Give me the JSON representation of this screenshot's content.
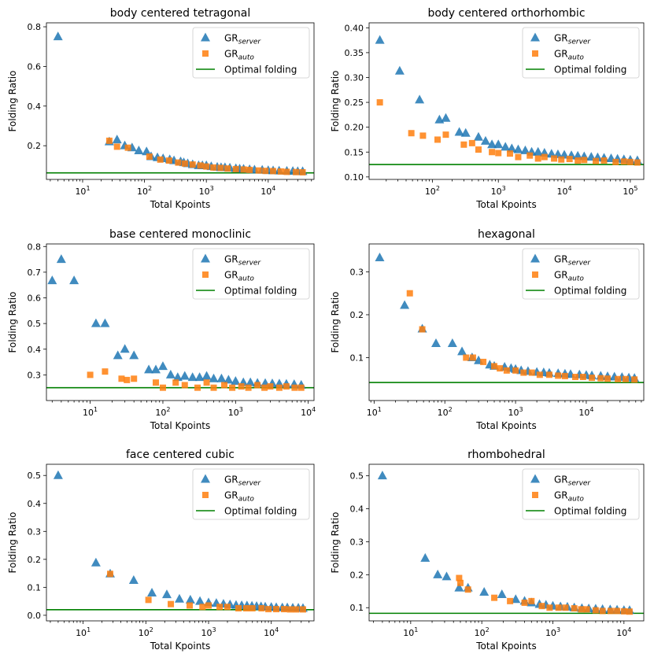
{
  "chart_data": [
    {
      "type": "scatter",
      "title": "body centered tetragonal",
      "xlabel": "Total Kpoints",
      "ylabel": "Folding Ratio",
      "xscale": "log",
      "xlim": [
        2.6,
        55000
      ],
      "ylim": [
        0.03,
        0.82
      ],
      "yticks": [
        0.2,
        0.4,
        0.6,
        0.8
      ],
      "ytick_labels": [
        "0.2",
        "0.4",
        "0.6",
        "0.8"
      ],
      "xticks": [
        10,
        100,
        1000,
        10000
      ],
      "xtick_labels": [
        "10^1",
        "10^2",
        "10^3",
        "10^4"
      ],
      "optimal": 0.063,
      "legend": {
        "position": "top-right",
        "items": [
          {
            "base": "GR",
            "sub": "server"
          },
          {
            "base": "GR",
            "sub": "auto"
          },
          {
            "label": "Optimal folding"
          }
        ]
      },
      "series": [
        {
          "name": "GR_server",
          "marker": "triangle",
          "color": "#1f77b4",
          "x": [
            4,
            27,
            36,
            48,
            63,
            81,
            108,
            128,
            162,
            200,
            256,
            300,
            384,
            432,
            500,
            600,
            750,
            864,
            1000,
            1200,
            1500,
            1728,
            2000,
            2400,
            3000,
            3456,
            4000,
            5000,
            6000,
            8000,
            10000,
            12000,
            15000,
            20000,
            25000,
            30000,
            36000
          ],
          "y": [
            0.75,
            0.22,
            0.23,
            0.2,
            0.19,
            0.175,
            0.17,
            0.145,
            0.14,
            0.135,
            0.13,
            0.125,
            0.12,
            0.115,
            0.11,
            0.105,
            0.1,
            0.1,
            0.1,
            0.095,
            0.092,
            0.09,
            0.09,
            0.088,
            0.085,
            0.083,
            0.082,
            0.08,
            0.078,
            0.077,
            0.075,
            0.074,
            0.073,
            0.072,
            0.071,
            0.07,
            0.07
          ]
        },
        {
          "name": "GR_auto",
          "marker": "square",
          "color": "#ff7f0e",
          "x": [
            27,
            36,
            54,
            120,
            180,
            250,
            350,
            450,
            600,
            800,
            1000,
            1300,
            1700,
            2200,
            3000,
            4000,
            5000,
            7000,
            9000,
            12000,
            16000,
            20000,
            28000,
            36000
          ],
          "y": [
            0.225,
            0.195,
            0.19,
            0.145,
            0.13,
            0.125,
            0.115,
            0.11,
            0.105,
            0.1,
            0.095,
            0.09,
            0.088,
            0.085,
            0.082,
            0.08,
            0.078,
            0.075,
            0.073,
            0.072,
            0.07,
            0.068,
            0.067,
            0.066
          ]
        }
      ]
    },
    {
      "type": "scatter",
      "title": "body centered orthorhombic",
      "xlabel": "Total Kpoints",
      "ylabel": "Folding Ratio",
      "xscale": "log",
      "xlim": [
        11,
        160000
      ],
      "ylim": [
        0.095,
        0.41
      ],
      "yticks": [
        0.1,
        0.15,
        0.2,
        0.25,
        0.3,
        0.35,
        0.4
      ],
      "ytick_labels": [
        "0.10",
        "0.15",
        "0.20",
        "0.25",
        "0.30",
        "0.35",
        "0.40"
      ],
      "xticks": [
        100,
        1000,
        10000,
        100000
      ],
      "xtick_labels": [
        "10^2",
        "10^3",
        "10^4",
        "10^5"
      ],
      "optimal": 0.125,
      "legend": {
        "position": "top-right",
        "items": [
          {
            "base": "GR",
            "sub": "server"
          },
          {
            "base": "GR",
            "sub": "auto"
          },
          {
            "label": "Optimal folding"
          }
        ]
      },
      "series": [
        {
          "name": "GR_server",
          "marker": "triangle",
          "color": "#1f77b4",
          "x": [
            16,
            32,
            64,
            128,
            160,
            256,
            320,
            500,
            640,
            800,
            1000,
            1280,
            1600,
            2000,
            2560,
            3200,
            4000,
            5000,
            6400,
            8000,
            10000,
            12800,
            16000,
            20000,
            25600,
            32000,
            40000,
            51200,
            64000,
            80000,
            100000,
            128000
          ],
          "y": [
            0.375,
            0.313,
            0.255,
            0.215,
            0.218,
            0.19,
            0.188,
            0.18,
            0.172,
            0.165,
            0.165,
            0.16,
            0.157,
            0.155,
            0.153,
            0.15,
            0.15,
            0.148,
            0.146,
            0.145,
            0.144,
            0.143,
            0.142,
            0.141,
            0.14,
            0.139,
            0.138,
            0.137,
            0.136,
            0.135,
            0.134,
            0.133
          ]
        },
        {
          "name": "GR_auto",
          "marker": "square",
          "color": "#ff7f0e",
          "x": [
            16,
            48,
            72,
            120,
            160,
            300,
            400,
            500,
            800,
            1000,
            1500,
            2000,
            3000,
            4000,
            5000,
            7000,
            9000,
            12000,
            16000,
            20000,
            30000,
            40000,
            60000,
            80000,
            100000,
            128000
          ],
          "y": [
            0.25,
            0.188,
            0.183,
            0.175,
            0.185,
            0.165,
            0.168,
            0.155,
            0.15,
            0.148,
            0.147,
            0.14,
            0.143,
            0.137,
            0.14,
            0.137,
            0.135,
            0.136,
            0.133,
            0.134,
            0.132,
            0.133,
            0.13,
            0.131,
            0.13,
            0.129
          ]
        }
      ]
    },
    {
      "type": "scatter",
      "title": "base centered monoclinic",
      "xlabel": "Total Kpoints",
      "ylabel": "Folding Ratio",
      "xscale": "log",
      "xlim": [
        2.5,
        12000
      ],
      "ylim": [
        0.2,
        0.81
      ],
      "yticks": [
        0.3,
        0.4,
        0.5,
        0.6,
        0.7,
        0.8
      ],
      "ytick_labels": [
        "0.3",
        "0.4",
        "0.5",
        "0.6",
        "0.7",
        "0.8"
      ],
      "xticks": [
        10,
        100,
        1000,
        10000
      ],
      "xtick_labels": [
        "10^1",
        "10^2",
        "10^3",
        "10^4"
      ],
      "optimal": 0.25,
      "legend": {
        "position": "top-right",
        "items": [
          {
            "base": "GR",
            "sub": "server"
          },
          {
            "base": "GR",
            "sub": "auto"
          },
          {
            "label": "Optimal folding"
          }
        ]
      },
      "series": [
        {
          "name": "GR_server",
          "marker": "triangle",
          "color": "#1f77b4",
          "x": [
            3,
            4,
            6,
            12,
            16,
            24,
            30,
            40,
            64,
            80,
            100,
            128,
            160,
            200,
            256,
            320,
            400,
            500,
            640,
            800,
            1000,
            1280,
            1600,
            2000,
            2560,
            3200,
            4000,
            5000,
            6400,
            8000
          ],
          "y": [
            0.667,
            0.75,
            0.667,
            0.5,
            0.5,
            0.375,
            0.4,
            0.375,
            0.32,
            0.32,
            0.333,
            0.3,
            0.29,
            0.295,
            0.29,
            0.29,
            0.295,
            0.285,
            0.285,
            0.28,
            0.275,
            0.27,
            0.27,
            0.268,
            0.267,
            0.266,
            0.265,
            0.264,
            0.263,
            0.26
          ]
        },
        {
          "name": "GR_auto",
          "marker": "square",
          "color": "#ff7f0e",
          "x": [
            10,
            16,
            27,
            32,
            40,
            80,
            100,
            150,
            200,
            300,
            400,
            500,
            700,
            900,
            1200,
            1500,
            2000,
            2500,
            3000,
            4000,
            5000,
            6500,
            8000
          ],
          "y": [
            0.3,
            0.313,
            0.285,
            0.28,
            0.285,
            0.27,
            0.25,
            0.27,
            0.26,
            0.25,
            0.27,
            0.25,
            0.26,
            0.25,
            0.255,
            0.25,
            0.26,
            0.25,
            0.255,
            0.25,
            0.255,
            0.25,
            0.25
          ]
        }
      ]
    },
    {
      "type": "scatter",
      "title": "hexagonal",
      "xlabel": "Total Kpoints",
      "ylabel": "Folding Ratio",
      "xscale": "log",
      "xlim": [
        8.5,
        65000
      ],
      "ylim": [
        0.0,
        0.365
      ],
      "yticks": [
        0.1,
        0.2,
        0.3
      ],
      "ytick_labels": [
        "0.1",
        "0.2",
        "0.3"
      ],
      "xticks": [
        10,
        100,
        1000,
        10000
      ],
      "xtick_labels": [
        "10^1",
        "10^2",
        "10^3",
        "10^4"
      ],
      "optimal": 0.042,
      "legend": {
        "position": "top-right",
        "items": [
          {
            "base": "GR",
            "sub": "server"
          },
          {
            "base": "GR",
            "sub": "auto"
          },
          {
            "label": "Optimal folding"
          }
        ]
      },
      "series": [
        {
          "name": "GR_server",
          "marker": "triangle",
          "color": "#1f77b4",
          "x": [
            12,
            27,
            48,
            75,
            128,
            175,
            243,
            300,
            432,
            500,
            700,
            864,
            1000,
            1200,
            1500,
            2000,
            2500,
            3000,
            4000,
            5000,
            6000,
            8000,
            10000,
            12000,
            16000,
            20000,
            25000,
            32000,
            40000,
            48000
          ],
          "y": [
            0.333,
            0.222,
            0.167,
            0.133,
            0.133,
            0.114,
            0.1,
            0.093,
            0.083,
            0.08,
            0.078,
            0.075,
            0.073,
            0.07,
            0.068,
            0.066,
            0.065,
            0.064,
            0.063,
            0.062,
            0.061,
            0.06,
            0.059,
            0.058,
            0.057,
            0.056,
            0.055,
            0.054,
            0.053,
            0.052
          ]
        },
        {
          "name": "GR_auto",
          "marker": "square",
          "color": "#ff7f0e",
          "x": [
            32,
            48,
            200,
            250,
            350,
            500,
            600,
            750,
            1000,
            1300,
            1700,
            2200,
            3000,
            4000,
            5000,
            7000,
            9000,
            12000,
            16000,
            20000,
            28000,
            36000,
            48000
          ],
          "y": [
            0.25,
            0.166,
            0.1,
            0.1,
            0.09,
            0.08,
            0.075,
            0.07,
            0.07,
            0.065,
            0.065,
            0.06,
            0.06,
            0.058,
            0.057,
            0.055,
            0.055,
            0.053,
            0.052,
            0.051,
            0.05,
            0.05,
            0.049
          ]
        }
      ]
    },
    {
      "type": "scatter",
      "title": "face centered cubic",
      "xlabel": "Total Kpoints",
      "ylabel": "Folding Ratio",
      "xscale": "log",
      "xlim": [
        2.6,
        48000
      ],
      "ylim": [
        -0.02,
        0.54
      ],
      "yticks": [
        0.0,
        0.1,
        0.2,
        0.3,
        0.4,
        0.5
      ],
      "ytick_labels": [
        "0.0",
        "0.1",
        "0.2",
        "0.3",
        "0.4",
        "0.5"
      ],
      "xticks": [
        10,
        100,
        1000,
        10000
      ],
      "xtick_labels": [
        "10^1",
        "10^2",
        "10^3",
        "10^4"
      ],
      "optimal": 0.02,
      "legend": {
        "position": "top-right",
        "items": [
          {
            "base": "GR",
            "sub": "server"
          },
          {
            "base": "GR",
            "sub": "auto"
          },
          {
            "label": "Optimal folding"
          }
        ]
      },
      "series": [
        {
          "name": "GR_server",
          "marker": "triangle",
          "color": "#1f77b4",
          "x": [
            4,
            16,
            27,
            64,
            125,
            216,
            343,
            512,
            729,
            1000,
            1331,
            1728,
            2197,
            2744,
            3375,
            4096,
            4913,
            5832,
            6859,
            8000,
            10000,
            12000,
            15000,
            18000,
            22000,
            27000,
            32000
          ],
          "y": [
            0.5,
            0.1875,
            0.148,
            0.125,
            0.08,
            0.074,
            0.058,
            0.055,
            0.05,
            0.045,
            0.043,
            0.04,
            0.038,
            0.036,
            0.035,
            0.034,
            0.033,
            0.032,
            0.031,
            0.03,
            0.029,
            0.028,
            0.027,
            0.027,
            0.026,
            0.026,
            0.025
          ]
        },
        {
          "name": "GR_auto",
          "marker": "square",
          "color": "#ff7f0e",
          "x": [
            27,
            110,
            250,
            500,
            800,
            1000,
            1500,
            2000,
            3000,
            4000,
            5000,
            7000,
            9000,
            12000,
            16000,
            20000,
            25000,
            32000
          ],
          "y": [
            0.148,
            0.055,
            0.04,
            0.035,
            0.03,
            0.035,
            0.03,
            0.03,
            0.025,
            0.025,
            0.025,
            0.025,
            0.022,
            0.022,
            0.022,
            0.021,
            0.021,
            0.021
          ]
        }
      ]
    },
    {
      "type": "scatter",
      "title": "rhombohedral",
      "xlabel": "Total Kpoints",
      "ylabel": "Folding Ratio",
      "xscale": "log",
      "xlim": [
        2.6,
        19000
      ],
      "ylim": [
        0.06,
        0.535
      ],
      "yticks": [
        0.1,
        0.2,
        0.3,
        0.4,
        0.5
      ],
      "ytick_labels": [
        "0.1",
        "0.2",
        "0.3",
        "0.4",
        "0.5"
      ],
      "xticks": [
        10,
        100,
        1000,
        10000
      ],
      "xtick_labels": [
        "10^1",
        "10^2",
        "10^3",
        "10^4"
      ],
      "optimal": 0.083,
      "legend": {
        "position": "top-right",
        "items": [
          {
            "base": "GR",
            "sub": "server"
          },
          {
            "base": "GR",
            "sub": "auto"
          },
          {
            "label": "Optimal folding"
          }
        ]
      },
      "series": [
        {
          "name": "GR_server",
          "marker": "triangle",
          "color": "#1f77b4",
          "x": [
            4,
            16,
            24,
            32,
            48,
            64,
            108,
            192,
            300,
            400,
            500,
            648,
            800,
            1000,
            1280,
            1600,
            2000,
            2560,
            3200,
            4000,
            5000,
            6400,
            8000,
            10000,
            12000
          ],
          "y": [
            0.5,
            0.25,
            0.2,
            0.194,
            0.16,
            0.16,
            0.147,
            0.14,
            0.125,
            0.12,
            0.115,
            0.11,
            0.108,
            0.105,
            0.103,
            0.102,
            0.1,
            0.098,
            0.097,
            0.096,
            0.095,
            0.094,
            0.093,
            0.092,
            0.092
          ]
        },
        {
          "name": "GR_auto",
          "marker": "square",
          "color": "#ff7f0e",
          "x": [
            48,
            50,
            64,
            150,
            250,
            400,
            500,
            700,
            900,
            1200,
            1500,
            2000,
            2500,
            3000,
            4000,
            5000,
            6500,
            8000,
            10000,
            12000
          ],
          "y": [
            0.19,
            0.175,
            0.155,
            0.13,
            0.12,
            0.115,
            0.12,
            0.105,
            0.1,
            0.1,
            0.1,
            0.098,
            0.095,
            0.095,
            0.092,
            0.09,
            0.09,
            0.09,
            0.089,
            0.088
          ]
        }
      ]
    }
  ]
}
